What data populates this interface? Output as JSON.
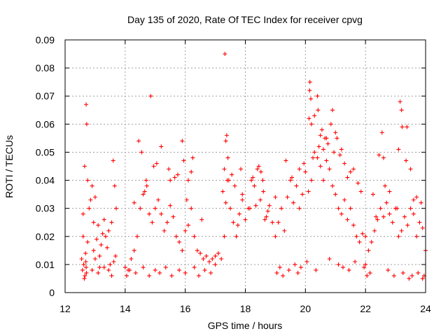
{
  "chart_data": {
    "type": "scatter",
    "title": "Day 135 of 2020, Rate Of TEC Index for receiver cpvg",
    "xlabel": "GPS time / hours",
    "ylabel": "ROTI / TECUs",
    "xlim": [
      12,
      24
    ],
    "ylim": [
      0,
      0.09
    ],
    "x_ticks": [
      12,
      14,
      16,
      18,
      20,
      22,
      24
    ],
    "x_tick_labels": [
      "12",
      "14",
      "16",
      "18",
      "20",
      "22",
      "24"
    ],
    "y_ticks": [
      0,
      0.01,
      0.02,
      0.03,
      0.04,
      0.05,
      0.06,
      0.07,
      0.08,
      0.09
    ],
    "y_tick_labels": [
      "0",
      "0.01",
      "0.02",
      "0.03",
      "0.04",
      "0.05",
      "0.06",
      "0.07",
      "0.08",
      "0.09"
    ],
    "grid": true,
    "marker": "+",
    "series": [
      {
        "name": "ROTI",
        "color": "#ff0000",
        "x": [
          12.55,
          12.6,
          12.65,
          12.7,
          12.72,
          12.75,
          12.8,
          12.85,
          12.9,
          12.95,
          13.0,
          13.05,
          13.1,
          13.15,
          13.2,
          13.25,
          13.3,
          13.35,
          13.4,
          13.45,
          13.5,
          13.55,
          13.6,
          13.65,
          13.7,
          12.58,
          12.66,
          12.69,
          12.7,
          12.71,
          12.68,
          12.64,
          12.62,
          12.9,
          13.0,
          13.1,
          13.15,
          13.55,
          13.62,
          13.68,
          12.6,
          12.75,
          12.95,
          13.3,
          13.45,
          14.0,
          14.1,
          14.2,
          14.3,
          14.4,
          14.5,
          14.6,
          14.7,
          14.8,
          14.9,
          15.0,
          15.1,
          15.2,
          15.3,
          15.4,
          15.5,
          15.6,
          15.7,
          15.8,
          15.9,
          16.0,
          16.1,
          16.2,
          16.3,
          16.4,
          16.5,
          16.6,
          16.7,
          16.8,
          16.9,
          17.0,
          14.45,
          14.55,
          14.72,
          14.85,
          14.95,
          15.2,
          15.45,
          15.65,
          15.9,
          15.95,
          16.1,
          16.2,
          16.25,
          14.3,
          14.65,
          15.05,
          15.5,
          15.75,
          16.05,
          16.55,
          14.05,
          14.15,
          14.35,
          14.6,
          14.8,
          15.0,
          15.15,
          15.35,
          15.55,
          15.8,
          16.0,
          16.3,
          16.45,
          16.65,
          16.85,
          17.0,
          17.1,
          17.2,
          17.3,
          17.35,
          17.4,
          17.5,
          17.6,
          17.7,
          17.8,
          17.9,
          18.0,
          18.1,
          18.2,
          18.3,
          18.4,
          18.5,
          18.6,
          18.7,
          18.8,
          18.9,
          19.0,
          17.32,
          17.35,
          17.38,
          17.42,
          17.3,
          17.45,
          17.55,
          17.65,
          17.85,
          18.25,
          18.45,
          18.52,
          18.58,
          18.35,
          17.25,
          17.9,
          18.65,
          18.75,
          17.75,
          18.15,
          19.0,
          19.1,
          19.2,
          19.3,
          19.4,
          19.5,
          19.6,
          19.7,
          19.8,
          19.9,
          20.0,
          20.1,
          20.2,
          20.3,
          20.4,
          20.5,
          20.6,
          20.7,
          20.8,
          20.9,
          21.0,
          21.1,
          21.2,
          21.3,
          21.4,
          21.5,
          21.6,
          21.7,
          21.8,
          21.9,
          22.0,
          20.15,
          20.18,
          20.12,
          20.14,
          20.2,
          20.3,
          20.4,
          20.42,
          20.45,
          20.5,
          20.55,
          20.6,
          20.65,
          20.7,
          20.85,
          20.9,
          20.95,
          21.05,
          21.15,
          21.3,
          21.4,
          21.5,
          21.75,
          21.85,
          19.35,
          19.55,
          19.8,
          19.95,
          20.25,
          20.75,
          21.0,
          21.2,
          21.6,
          19.05,
          19.15,
          19.25,
          19.45,
          19.65,
          19.75,
          19.85,
          20.05,
          20.35,
          20.8,
          21.1,
          21.25,
          21.45,
          21.65,
          21.95,
          22.0,
          22.1,
          22.2,
          22.3,
          22.4,
          22.5,
          22.6,
          22.7,
          22.8,
          22.9,
          23.0,
          23.1,
          23.2,
          23.3,
          23.4,
          23.5,
          23.6,
          23.7,
          23.8,
          23.9,
          24.0,
          22.55,
          22.6,
          22.65,
          23.1,
          23.15,
          23.2,
          23.22,
          23.38,
          23.35,
          23.5,
          23.7,
          23.85,
          22.45,
          22.8,
          23.05,
          23.6,
          22.35,
          22.25,
          22.05,
          22.15,
          22.75,
          22.95,
          23.25,
          23.45,
          23.55,
          23.75,
          23.9,
          23.95
        ],
        "y": [
          0.012,
          0.028,
          0.045,
          0.067,
          0.06,
          0.04,
          0.03,
          0.033,
          0.038,
          0.025,
          0.034,
          0.019,
          0.024,
          0.013,
          0.017,
          0.021,
          0.026,
          0.02,
          0.016,
          0.022,
          0.01,
          0.025,
          0.047,
          0.038,
          0.03,
          0.008,
          0.006,
          0.011,
          0.009,
          0.007,
          0.014,
          0.005,
          0.01,
          0.008,
          0.012,
          0.007,
          0.009,
          0.006,
          0.011,
          0.013,
          0.02,
          0.018,
          0.015,
          0.009,
          0.008,
          0.009,
          0.008,
          0.012,
          0.015,
          0.02,
          0.03,
          0.035,
          0.04,
          0.028,
          0.025,
          0.03,
          0.033,
          0.028,
          0.022,
          0.025,
          0.031,
          0.027,
          0.02,
          0.018,
          0.015,
          0.022,
          0.024,
          0.03,
          0.02,
          0.015,
          0.014,
          0.012,
          0.013,
          0.011,
          0.012,
          0.013,
          0.054,
          0.05,
          0.038,
          0.07,
          0.045,
          0.052,
          0.044,
          0.041,
          0.054,
          0.047,
          0.04,
          0.043,
          0.048,
          0.032,
          0.036,
          0.046,
          0.04,
          0.042,
          0.033,
          0.026,
          0.006,
          0.008,
          0.007,
          0.009,
          0.006,
          0.008,
          0.007,
          0.009,
          0.006,
          0.008,
          0.007,
          0.009,
          0.006,
          0.008,
          0.007,
          0.01,
          0.014,
          0.012,
          0.02,
          0.032,
          0.04,
          0.03,
          0.025,
          0.02,
          0.028,
          0.035,
          0.026,
          0.03,
          0.04,
          0.038,
          0.044,
          0.033,
          0.036,
          0.027,
          0.031,
          0.025,
          0.034,
          0.085,
          0.054,
          0.056,
          0.048,
          0.044,
          0.04,
          0.042,
          0.038,
          0.044,
          0.041,
          0.045,
          0.043,
          0.04,
          0.031,
          0.036,
          0.033,
          0.026,
          0.029,
          0.024,
          0.03,
          0.02,
          0.025,
          0.03,
          0.022,
          0.034,
          0.04,
          0.032,
          0.038,
          0.03,
          0.035,
          0.043,
          0.036,
          0.04,
          0.05,
          0.048,
          0.045,
          0.04,
          0.055,
          0.044,
          0.038,
          0.035,
          0.03,
          0.028,
          0.033,
          0.026,
          0.03,
          0.024,
          0.02,
          0.018,
          0.021,
          0.02,
          0.075,
          0.069,
          0.062,
          0.072,
          0.06,
          0.063,
          0.07,
          0.065,
          0.052,
          0.056,
          0.058,
          0.051,
          0.055,
          0.047,
          0.06,
          0.065,
          0.05,
          0.055,
          0.049,
          0.046,
          0.041,
          0.043,
          0.039,
          0.036,
          0.047,
          0.041,
          0.044,
          0.046,
          0.048,
          0.053,
          0.057,
          0.051,
          0.044,
          0.007,
          0.009,
          0.006,
          0.008,
          0.01,
          0.007,
          0.009,
          0.011,
          0.008,
          0.012,
          0.01,
          0.009,
          0.008,
          0.011,
          0.009,
          0.01,
          0.015,
          0.018,
          0.022,
          0.026,
          0.03,
          0.027,
          0.032,
          0.028,
          0.025,
          0.03,
          0.02,
          0.022,
          0.027,
          0.024,
          0.03,
          0.028,
          0.02,
          0.025,
          0.023,
          0.015,
          0.057,
          0.048,
          0.038,
          0.051,
          0.068,
          0.065,
          0.059,
          0.059,
          0.047,
          0.044,
          0.034,
          0.032,
          0.049,
          0.036,
          0.03,
          0.033,
          0.027,
          0.035,
          0.006,
          0.007,
          0.008,
          0.006,
          0.007,
          0.005,
          0.006,
          0.007,
          0.005,
          0.006
        ]
      }
    ]
  }
}
